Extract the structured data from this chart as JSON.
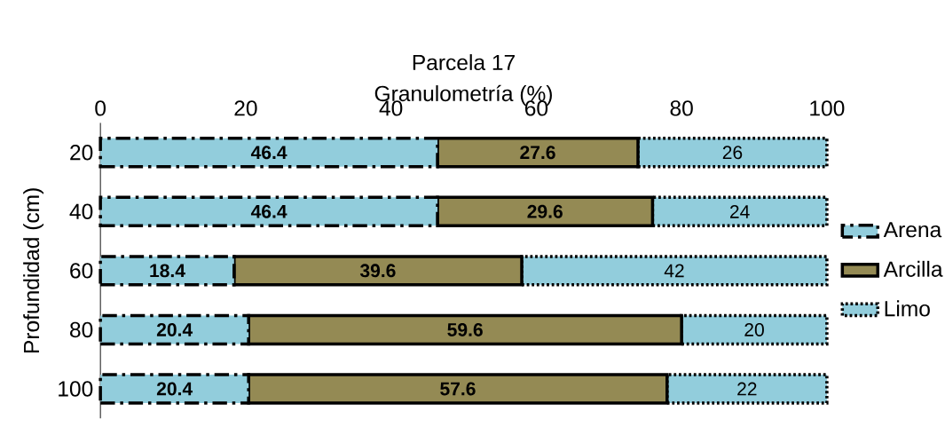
{
  "chart_data": {
    "type": "bar",
    "orientation": "horizontal",
    "stacked": true,
    "title": "Parcela 17",
    "xlabel": "Granulometría (%)",
    "ylabel": "Profundidad (cm)",
    "categories": [
      "20",
      "40",
      "60",
      "80",
      "100"
    ],
    "series": [
      {
        "name": "Arena",
        "color": "#92cddc",
        "line_style": "dashed",
        "values": [
          46.4,
          46.4,
          18.4,
          20.4,
          20.4
        ]
      },
      {
        "name": "Arcilla",
        "color": "#948a54",
        "line_style": "solid",
        "values": [
          27.6,
          29.6,
          39.6,
          59.6,
          57.6
        ]
      },
      {
        "name": "Limo",
        "color": "#92cddc",
        "line_style": "dotted",
        "values": [
          26,
          24,
          42,
          20,
          22
        ]
      }
    ],
    "xlim": [
      0,
      100
    ],
    "xticks": [
      0,
      20,
      40,
      60,
      80,
      100
    ],
    "legend": "right",
    "data_labels": true
  }
}
